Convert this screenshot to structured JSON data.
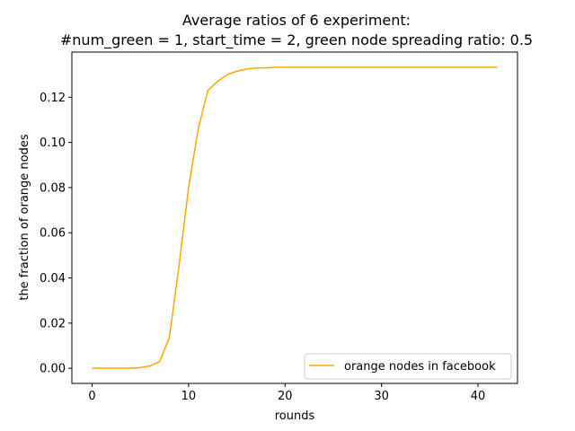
{
  "chart_data": {
    "type": "line",
    "title_lines": [
      "Average ratios of 6 experiment:",
      "#num_green = 1, start_time = 2, green node spreading ratio: 0.5"
    ],
    "xlabel": "rounds",
    "ylabel": "the fraction of orange nodes",
    "xlim": [
      -2.1,
      44.1
    ],
    "ylim": [
      -0.0067,
      0.14
    ],
    "xticks": [
      0,
      10,
      20,
      30,
      40
    ],
    "yticks": [
      0.0,
      0.02,
      0.04,
      0.06,
      0.08,
      0.1,
      0.12
    ],
    "ytick_labels": [
      "0.00",
      "0.02",
      "0.04",
      "0.06",
      "0.08",
      "0.10",
      "0.12"
    ],
    "grid": false,
    "legend": {
      "position": "lower-right"
    },
    "series": [
      {
        "name": "orange nodes in facebook",
        "color": "#ffa500",
        "x": [
          0,
          1,
          2,
          3,
          4,
          5,
          6,
          7,
          8,
          9,
          10,
          11,
          12,
          13,
          14,
          15,
          16,
          17,
          18,
          19,
          20,
          21,
          22,
          23,
          24,
          25,
          26,
          27,
          28,
          29,
          30,
          31,
          32,
          33,
          34,
          35,
          36,
          37,
          38,
          39,
          40,
          41,
          42
        ],
        "y": [
          0.0,
          0.0,
          0.0,
          0.0,
          0.0,
          0.0003,
          0.001,
          0.003,
          0.0135,
          0.045,
          0.08,
          0.106,
          0.123,
          0.127,
          0.13,
          0.1315,
          0.1325,
          0.133,
          0.133,
          0.1333,
          0.1333,
          0.1333,
          0.1333,
          0.1333,
          0.1333,
          0.1333,
          0.1333,
          0.1333,
          0.1333,
          0.1333,
          0.1333,
          0.1333,
          0.1333,
          0.1333,
          0.1333,
          0.1333,
          0.1333,
          0.1333,
          0.1333,
          0.1333,
          0.1333,
          0.1333,
          0.1333
        ]
      }
    ]
  }
}
